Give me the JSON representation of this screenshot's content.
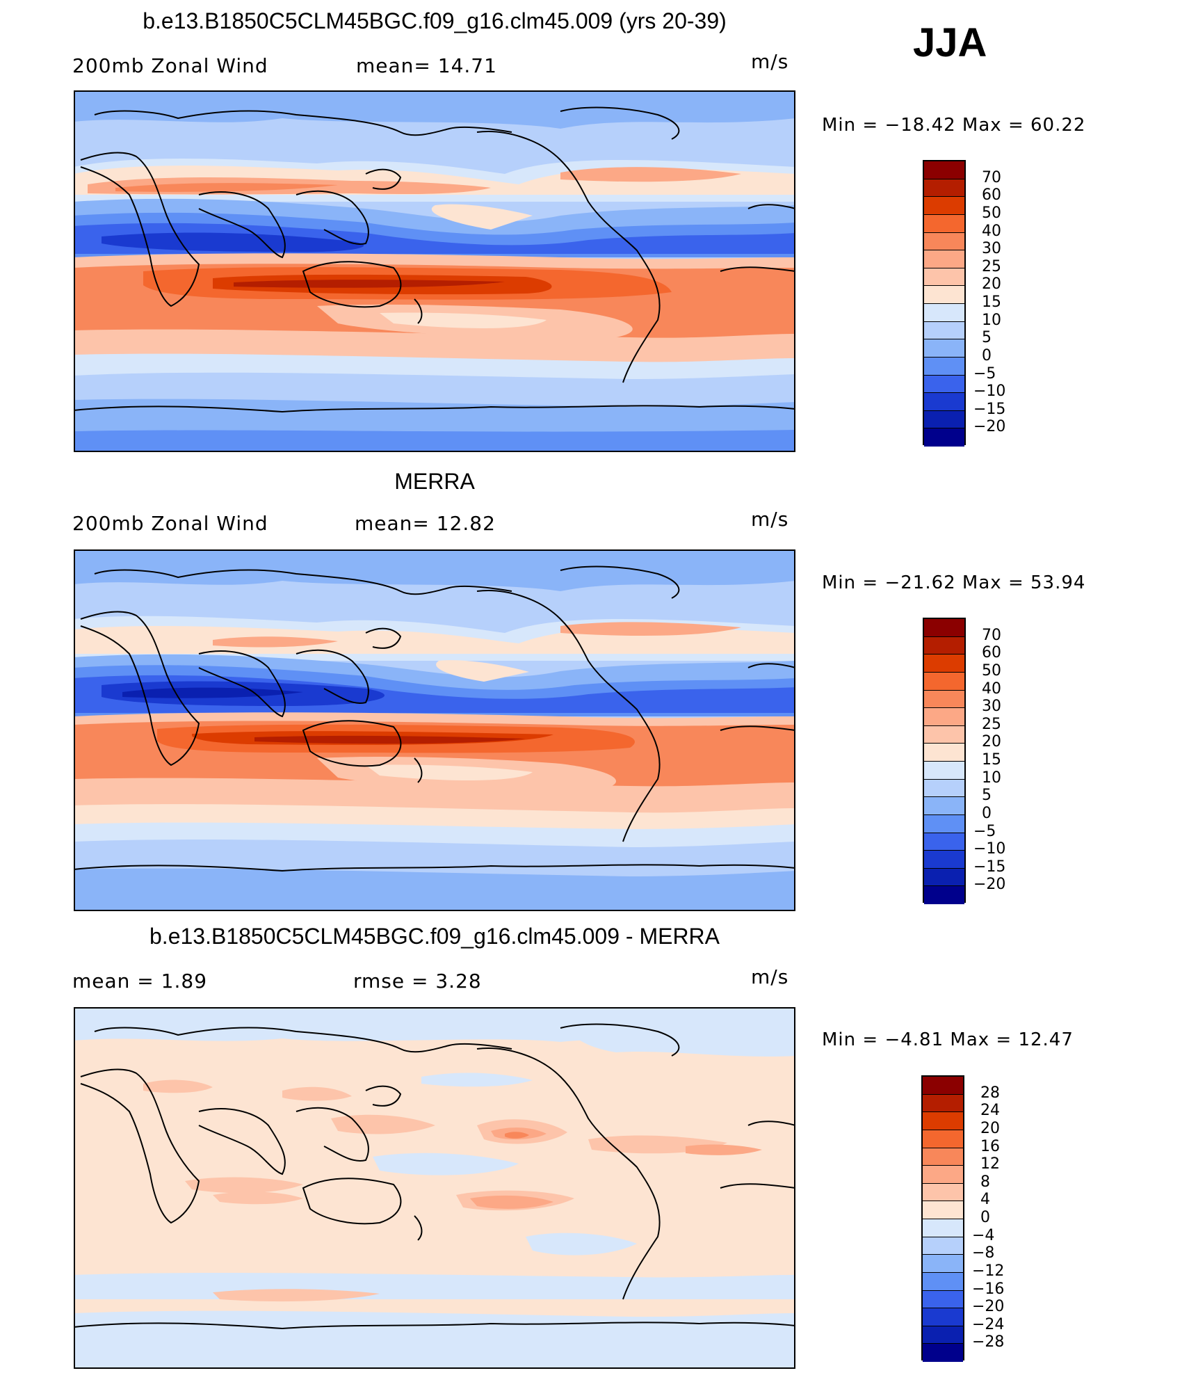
{
  "season": "JJA",
  "panels": [
    {
      "title": "b.e13.B1850C5CLM45BGC.f09_g16.clm45.009 (yrs 20-39)",
      "left_label": "200mb  Zonal  Wind",
      "mid_label": "mean=   14.71",
      "units": "m/s",
      "minmax": "Min  =  −18.42  Max  =    60.22",
      "colorbar_levels": [
        "70",
        "60",
        "50",
        "40",
        "30",
        "25",
        "20",
        "15",
        "10",
        "5",
        "0",
        "−5",
        "−10",
        "−15",
        "−20"
      ],
      "colorbar_colors": [
        "#8b0000",
        "#b41e00",
        "#dc3c00",
        "#f4672e",
        "#f8875a",
        "#fca886",
        "#fdc4aa",
        "#fde4d2",
        "#d7e7fb",
        "#b6d0fb",
        "#8ab4f8",
        "#5f90f5",
        "#3a63ec",
        "#1a3ad0",
        "#0a20b0",
        "#00008c"
      ]
    },
    {
      "title": "MERRA",
      "left_label": "200mb  Zonal  Wind",
      "mid_label": "mean=   12.82",
      "units": "m/s",
      "minmax": "Min  =  −21.62  Max  =    53.94",
      "colorbar_levels": [
        "70",
        "60",
        "50",
        "40",
        "30",
        "25",
        "20",
        "15",
        "10",
        "5",
        "0",
        "−5",
        "−10",
        "−15",
        "−20"
      ],
      "colorbar_colors": [
        "#8b0000",
        "#b41e00",
        "#dc3c00",
        "#f4672e",
        "#f8875a",
        "#fca886",
        "#fdc4aa",
        "#fde4d2",
        "#d7e7fb",
        "#b6d0fb",
        "#8ab4f8",
        "#5f90f5",
        "#3a63ec",
        "#1a3ad0",
        "#0a20b0",
        "#00008c"
      ]
    },
    {
      "title": "b.e13.B1850C5CLM45BGC.f09_g16.clm45.009 - MERRA",
      "left_label": "mean  =      1.89",
      "mid_label": "rmse  =      3.28",
      "units": "m/s",
      "minmax": "Min  =    −4.81  Max  =    12.47",
      "colorbar_levels": [
        "28",
        "24",
        "20",
        "16",
        "12",
        "8",
        "4",
        "0",
        "−4",
        "−8",
        "−12",
        "−16",
        "−20",
        "−24",
        "−28"
      ],
      "colorbar_colors": [
        "#8b0000",
        "#b41e00",
        "#dc3c00",
        "#f4672e",
        "#f8875a",
        "#fca886",
        "#fdc4aa",
        "#fde4d2",
        "#d7e7fb",
        "#b6d0fb",
        "#8ab4f8",
        "#5f90f5",
        "#3a63ec",
        "#1a3ad0",
        "#0a20b0",
        "#00008c"
      ]
    }
  ]
}
